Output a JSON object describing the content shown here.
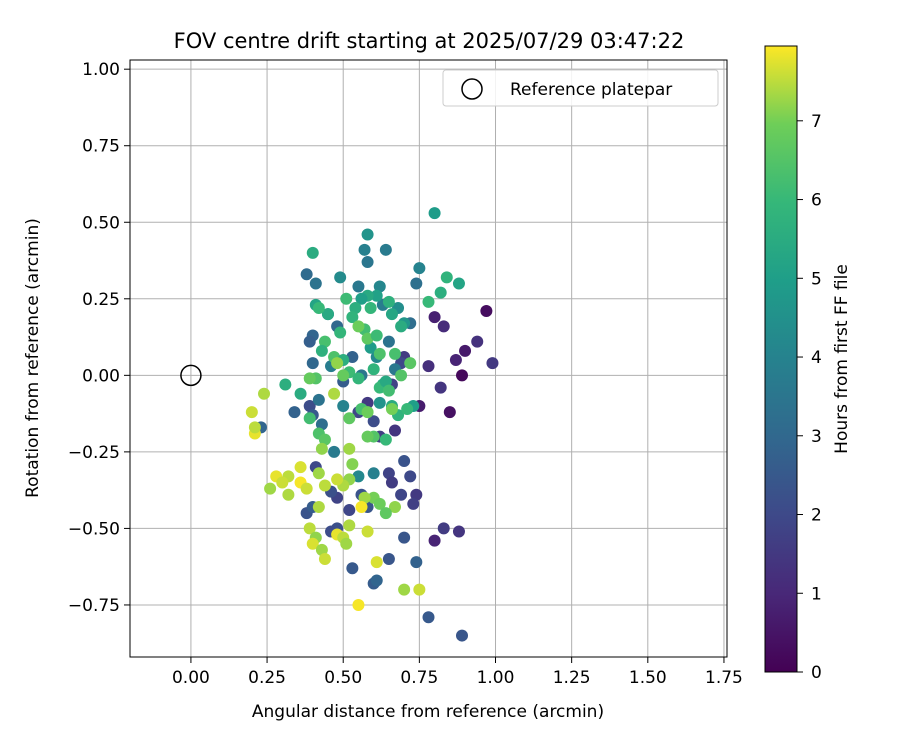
{
  "chart_data": {
    "type": "scatter",
    "title": "FOV centre drift starting at 2025/07/29 03:47:22",
    "xlabel": "Angular distance from reference (arcmin)",
    "ylabel": "Rotation from reference (arcmin)",
    "xlim": [
      -0.2,
      1.76
    ],
    "ylim": [
      -0.92,
      1.03
    ],
    "xticks": [
      0.0,
      0.25,
      0.5,
      0.75,
      1.0,
      1.25,
      1.5,
      1.75
    ],
    "xtick_labels": [
      "0.00",
      "0.25",
      "0.50",
      "0.75",
      "1.00",
      "1.25",
      "1.50",
      "1.75"
    ],
    "yticks": [
      -0.75,
      -0.5,
      -0.25,
      0.0,
      0.25,
      0.5,
      0.75,
      1.0
    ],
    "ytick_labels": [
      "−0.75",
      "−0.50",
      "−0.25",
      "0.00",
      "0.25",
      "0.50",
      "0.75",
      "1.00"
    ],
    "grid": true,
    "legend": {
      "placement": "top-right",
      "entries": [
        "Reference platepar"
      ]
    },
    "reference_point": {
      "name": "Reference platepar",
      "x": 0.0,
      "y": 0.0
    },
    "colorbar": {
      "label": "Hours from first FF file",
      "colormap": "viridis",
      "range": [
        0,
        7.95
      ],
      "ticks": [
        0,
        1,
        2,
        3,
        4,
        5,
        6,
        7
      ]
    },
    "points": [
      [
        0.97,
        0.21,
        0.3
      ],
      [
        0.89,
        0.0,
        0.2
      ],
      [
        0.9,
        0.08,
        0.6
      ],
      [
        0.87,
        0.05,
        0.9
      ],
      [
        0.94,
        0.11,
        1.3
      ],
      [
        0.99,
        0.04,
        1.5
      ],
      [
        0.85,
        -0.12,
        0.4
      ],
      [
        0.8,
        0.19,
        0.8
      ],
      [
        0.83,
        0.16,
        1.1
      ],
      [
        0.82,
        -0.04,
        1.4
      ],
      [
        0.78,
        0.03,
        1.2
      ],
      [
        0.75,
        -0.1,
        0.7
      ],
      [
        0.8,
        -0.54,
        0.9
      ],
      [
        0.83,
        -0.5,
        1.6
      ],
      [
        0.88,
        -0.51,
        1.4
      ],
      [
        0.74,
        -0.39,
        1.5
      ],
      [
        0.73,
        -0.42,
        1.7
      ],
      [
        0.72,
        -0.33,
        2.0
      ],
      [
        0.7,
        -0.28,
        2.3
      ],
      [
        0.69,
        -0.39,
        1.9
      ],
      [
        0.65,
        -0.32,
        1.8
      ],
      [
        0.66,
        -0.35,
        1.6
      ],
      [
        0.62,
        -0.2,
        1.7
      ],
      [
        0.58,
        -0.09,
        1.5
      ],
      [
        0.55,
        -0.12,
        1.9
      ],
      [
        0.6,
        -0.15,
        2.1
      ],
      [
        0.67,
        -0.18,
        1.4
      ],
      [
        0.7,
        0.06,
        1.6
      ],
      [
        0.69,
        0.04,
        2.0
      ],
      [
        0.66,
        -0.03,
        1.8
      ],
      [
        0.7,
        -0.53,
        2.4
      ],
      [
        0.74,
        -0.61,
        2.8
      ],
      [
        0.65,
        -0.6,
        2.4
      ],
      [
        0.6,
        -0.68,
        2.6
      ],
      [
        0.61,
        -0.67,
        2.9
      ],
      [
        0.53,
        -0.63,
        2.5
      ],
      [
        0.78,
        -0.79,
        2.5
      ],
      [
        0.89,
        -0.85,
        2.4
      ],
      [
        0.48,
        -0.5,
        2.2
      ],
      [
        0.46,
        -0.51,
        2.1
      ],
      [
        0.48,
        -0.4,
        1.8
      ],
      [
        0.46,
        -0.38,
        2.2
      ],
      [
        0.52,
        -0.44,
        1.9
      ],
      [
        0.38,
        -0.45,
        2.3
      ],
      [
        0.4,
        -0.43,
        2.6
      ],
      [
        0.41,
        -0.3,
        2.0
      ],
      [
        0.56,
        -0.39,
        2.3
      ],
      [
        0.58,
        -0.43,
        2.4
      ],
      [
        0.34,
        -0.12,
        2.8
      ],
      [
        0.39,
        -0.1,
        2.1
      ],
      [
        0.4,
        -0.13,
        2.5
      ],
      [
        0.23,
        -0.17,
        2.9
      ],
      [
        0.43,
        -0.16,
        3.2
      ],
      [
        0.42,
        -0.08,
        3.4
      ],
      [
        0.38,
        0.33,
        3.1
      ],
      [
        0.41,
        0.3,
        3.4
      ],
      [
        0.4,
        0.13,
        2.9
      ],
      [
        0.39,
        0.11,
        2.7
      ],
      [
        0.4,
        0.04,
        3.0
      ],
      [
        0.45,
        0.2,
        3.3
      ],
      [
        0.48,
        0.16,
        3.0
      ],
      [
        0.53,
        0.06,
        2.8
      ],
      [
        0.56,
        0.0,
        3.5
      ],
      [
        0.5,
        -0.02,
        2.6
      ],
      [
        0.46,
        0.03,
        3.8
      ],
      [
        0.55,
        0.29,
        3.6
      ],
      [
        0.57,
        0.41,
        3.9
      ],
      [
        0.58,
        0.37,
        3.5
      ],
      [
        0.64,
        0.41,
        3.7
      ],
      [
        0.65,
        0.11,
        3.4
      ],
      [
        0.67,
        0.02,
        3.6
      ],
      [
        0.72,
        0.17,
        3.2
      ],
      [
        0.74,
        0.3,
        3.3
      ],
      [
        0.75,
        0.35,
        4.0
      ],
      [
        0.63,
        0.23,
        3.8
      ],
      [
        0.49,
        0.32,
        4.3
      ],
      [
        0.58,
        0.46,
        4.6
      ],
      [
        0.62,
        0.29,
        4.1
      ],
      [
        0.68,
        0.22,
        4.4
      ],
      [
        0.7,
        0.17,
        4.7
      ],
      [
        0.61,
        0.06,
        4.2
      ],
      [
        0.59,
        0.09,
        4.9
      ],
      [
        0.5,
        -0.1,
        4.0
      ],
      [
        0.47,
        -0.25,
        3.7
      ],
      [
        0.6,
        -0.32,
        3.9
      ],
      [
        0.55,
        -0.33,
        4.2
      ],
      [
        0.62,
        -0.09,
        4.6
      ],
      [
        0.73,
        -0.1,
        5.0
      ],
      [
        0.8,
        0.53,
        4.9
      ],
      [
        0.88,
        0.3,
        5.2
      ],
      [
        0.82,
        0.27,
        5.6
      ],
      [
        0.84,
        0.32,
        5.8
      ],
      [
        0.78,
        0.24,
        6.0
      ],
      [
        0.69,
        0.16,
        5.5
      ],
      [
        0.66,
        0.2,
        5.3
      ],
      [
        0.65,
        0.24,
        5.7
      ],
      [
        0.61,
        0.26,
        5.1
      ],
      [
        0.58,
        0.26,
        5.4
      ],
      [
        0.59,
        0.22,
        5.9
      ],
      [
        0.56,
        0.25,
        5.0
      ],
      [
        0.54,
        0.22,
        5.6
      ],
      [
        0.51,
        0.25,
        6.1
      ],
      [
        0.53,
        0.19,
        5.8
      ],
      [
        0.57,
        0.15,
        6.2
      ],
      [
        0.49,
        0.14,
        5.9
      ],
      [
        0.45,
        0.2,
        5.4
      ],
      [
        0.41,
        0.23,
        5.2
      ],
      [
        0.42,
        0.22,
        6.0
      ],
      [
        0.4,
        0.4,
        5.5
      ],
      [
        0.44,
        0.11,
        6.3
      ],
      [
        0.43,
        0.08,
        5.7
      ],
      [
        0.47,
        0.06,
        6.4
      ],
      [
        0.5,
        0.05,
        5.6
      ],
      [
        0.52,
        0.01,
        6.1
      ],
      [
        0.55,
        -0.01,
        5.9
      ],
      [
        0.6,
        0.02,
        5.8
      ],
      [
        0.63,
        -0.03,
        5.6
      ],
      [
        0.62,
        -0.04,
        6.0
      ],
      [
        0.64,
        -0.02,
        5.4
      ],
      [
        0.65,
        -0.05,
        6.2
      ],
      [
        0.66,
        -0.1,
        5.5
      ],
      [
        0.68,
        -0.13,
        5.8
      ],
      [
        0.71,
        -0.11,
        6.0
      ],
      [
        0.69,
        0.0,
        6.5
      ],
      [
        0.72,
        0.04,
        6.6
      ],
      [
        0.67,
        0.07,
        6.3
      ],
      [
        0.62,
        0.07,
        6.4
      ],
      [
        0.58,
        0.12,
        6.7
      ],
      [
        0.61,
        0.13,
        6.1
      ],
      [
        0.55,
        0.16,
        6.9
      ],
      [
        0.5,
        0.0,
        6.8
      ],
      [
        0.48,
        0.04,
        7.2
      ],
      [
        0.41,
        -0.01,
        6.5
      ],
      [
        0.39,
        -0.01,
        6.8
      ],
      [
        0.36,
        -0.06,
        5.5
      ],
      [
        0.31,
        -0.03,
        5.6
      ],
      [
        0.39,
        -0.14,
        6.2
      ],
      [
        0.42,
        -0.19,
        6.4
      ],
      [
        0.44,
        -0.21,
        6.6
      ],
      [
        0.52,
        -0.14,
        6.7
      ],
      [
        0.56,
        -0.11,
        6.3
      ],
      [
        0.58,
        -0.12,
        6.9
      ],
      [
        0.6,
        -0.2,
        6.5
      ],
      [
        0.64,
        -0.21,
        6.0
      ],
      [
        0.58,
        -0.2,
        6.8
      ],
      [
        0.66,
        -0.11,
        7.0
      ],
      [
        0.52,
        -0.24,
        7.3
      ],
      [
        0.47,
        -0.06,
        7.4
      ],
      [
        0.53,
        -0.29,
        7.1
      ],
      [
        0.6,
        -0.4,
        7.0
      ],
      [
        0.62,
        -0.42,
        6.9
      ],
      [
        0.67,
        -0.43,
        7.2
      ],
      [
        0.64,
        -0.45,
        6.7
      ],
      [
        0.57,
        -0.4,
        7.3
      ],
      [
        0.52,
        -0.34,
        7.2
      ],
      [
        0.5,
        -0.36,
        7.4
      ],
      [
        0.48,
        -0.34,
        7.6
      ],
      [
        0.44,
        -0.36,
        7.5
      ],
      [
        0.42,
        -0.32,
        7.3
      ],
      [
        0.43,
        -0.24,
        7.2
      ],
      [
        0.36,
        -0.3,
        7.7
      ],
      [
        0.32,
        -0.33,
        7.5
      ],
      [
        0.28,
        -0.33,
        7.8
      ],
      [
        0.3,
        -0.35,
        7.6
      ],
      [
        0.32,
        -0.39,
        7.4
      ],
      [
        0.36,
        -0.35,
        7.9
      ],
      [
        0.38,
        -0.37,
        7.6
      ],
      [
        0.26,
        -0.37,
        7.3
      ],
      [
        0.42,
        -0.43,
        7.4
      ],
      [
        0.39,
        -0.5,
        7.5
      ],
      [
        0.41,
        -0.53,
        7.2
      ],
      [
        0.4,
        -0.55,
        7.7
      ],
      [
        0.43,
        -0.57,
        7.3
      ],
      [
        0.44,
        -0.6,
        7.6
      ],
      [
        0.48,
        -0.52,
        7.8
      ],
      [
        0.5,
        -0.53,
        7.5
      ],
      [
        0.51,
        -0.55,
        7.3
      ],
      [
        0.52,
        -0.49,
        7.4
      ],
      [
        0.56,
        -0.43,
        7.9
      ],
      [
        0.58,
        -0.51,
        7.6
      ],
      [
        0.61,
        -0.61,
        7.7
      ],
      [
        0.7,
        -0.7,
        7.3
      ],
      [
        0.75,
        -0.7,
        7.6
      ],
      [
        0.55,
        -0.75,
        7.9
      ],
      [
        0.2,
        -0.12,
        7.6
      ],
      [
        0.21,
        -0.19,
        7.8
      ],
      [
        0.21,
        -0.17,
        7.5
      ],
      [
        0.24,
        -0.06,
        7.4
      ]
    ]
  }
}
